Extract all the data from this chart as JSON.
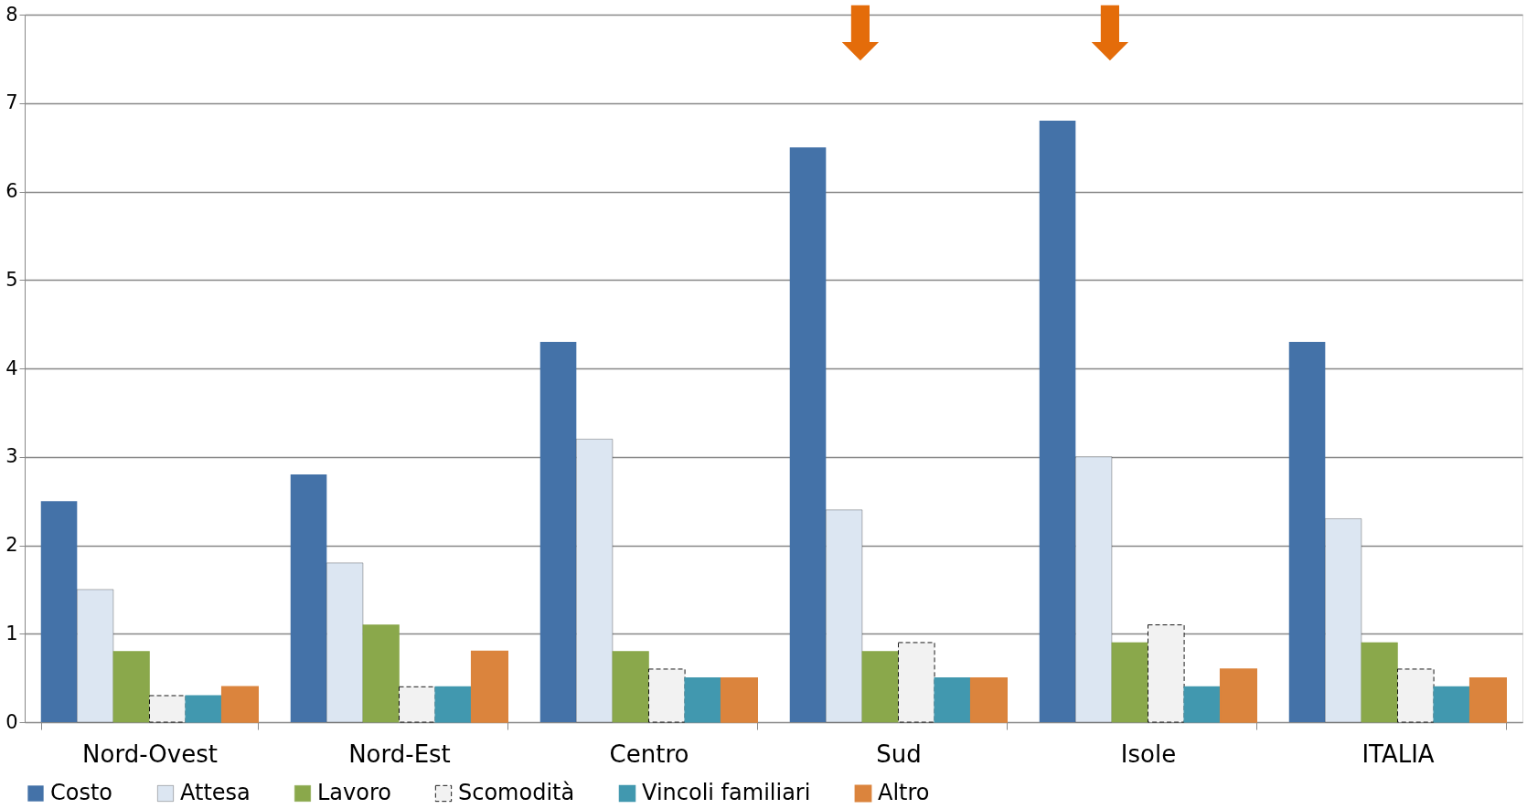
{
  "chart_data": {
    "type": "bar",
    "categories": [
      "Nord-Ovest",
      "Nord-Est",
      "Centro",
      "Sud",
      "Isole",
      "ITALIA"
    ],
    "series": [
      {
        "name": "Costo",
        "color": "#4472a8",
        "values": [
          2.5,
          2.8,
          4.3,
          6.5,
          6.8,
          4.3
        ]
      },
      {
        "name": "Attesa",
        "color": "#dce6f2",
        "values": [
          1.5,
          1.8,
          3.2,
          2.4,
          3.0,
          2.3
        ]
      },
      {
        "name": "Lavoro",
        "color": "#8aa84b",
        "values": [
          0.8,
          1.1,
          0.8,
          0.8,
          0.9,
          0.9
        ]
      },
      {
        "name": "Scomodità",
        "color": "#f2f2f2",
        "line_style": "dashed",
        "values": [
          0.3,
          0.4,
          0.6,
          0.9,
          1.1,
          0.6
        ]
      },
      {
        "name": "Vincoli familiari",
        "color": "#4198af",
        "values": [
          0.3,
          0.4,
          0.5,
          0.5,
          0.4,
          0.4
        ]
      },
      {
        "name": "Altro",
        "color": "#db843d",
        "values": [
          0.4,
          0.8,
          0.5,
          0.5,
          0.6,
          0.5
        ]
      }
    ],
    "ylim": [
      0,
      8
    ],
    "yticks": [
      0,
      1,
      2,
      3,
      4,
      5,
      6,
      7,
      8
    ],
    "grid": "y",
    "legend": "bottom"
  }
}
